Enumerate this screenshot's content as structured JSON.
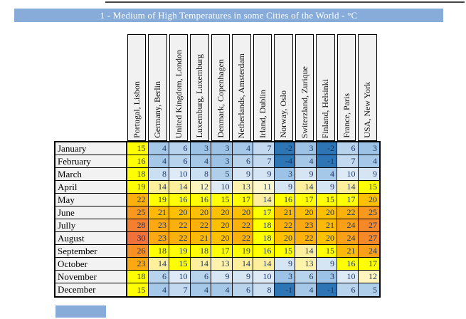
{
  "page": {
    "top_rule_color": "#454545",
    "title_bar": {
      "text": "1 - Medium of High Temperatures in some Cities of the World - °C",
      "bg": "#87ACD9",
      "text_color": "#FFFFFF"
    },
    "footer_fragment": {
      "bg": "#87ACD9"
    }
  },
  "table_style": {
    "header_cell_bg": "#F1F1F1",
    "row_label_bg": "#F2F2F2",
    "grid_border_color": "#000000",
    "number_color": "#1F3864",
    "negative_number_color": "#17375E"
  },
  "chart_data": {
    "type": "table",
    "title": "1 - Medium of High Temperatures in some Cities of the World - °C",
    "unit": "°C",
    "columns": [
      "Portugal, Lisbon",
      "Germany, Berlin",
      "United Kingdom, London",
      "Luxemburg, Luxemburg",
      "Denmark, Copenhagen",
      "Netherlands, Amsterdam",
      "Irland, Dublin",
      "Norway, Oslo",
      "Switerzland, Zurique",
      "Finland, Helsinki",
      "France, Paris",
      "USA, New York"
    ],
    "row_labels": [
      "January",
      "February",
      "March",
      "April",
      "May",
      "June",
      "Jully",
      "August",
      "September",
      "October",
      "November",
      "December"
    ],
    "values": [
      [
        15,
        4,
        6,
        3,
        3,
        4,
        7,
        -2,
        3,
        -2,
        6,
        3
      ],
      [
        16,
        4,
        6,
        4,
        3,
        6,
        7,
        -4,
        4,
        -1,
        7,
        4
      ],
      [
        18,
        8,
        10,
        8,
        5,
        9,
        9,
        3,
        9,
        4,
        10,
        9
      ],
      [
        19,
        14,
        14,
        12,
        10,
        13,
        11,
        9,
        14,
        9,
        14,
        15
      ],
      [
        22,
        19,
        16,
        16,
        15,
        17,
        14,
        16,
        17,
        15,
        17,
        20
      ],
      [
        25,
        21,
        20,
        20,
        20,
        20,
        17,
        21,
        20,
        20,
        22,
        25
      ],
      [
        28,
        23,
        22,
        22,
        20,
        22,
        18,
        22,
        23,
        21,
        24,
        27
      ],
      [
        30,
        23,
        22,
        21,
        20,
        22,
        18,
        20,
        22,
        20,
        24,
        27
      ],
      [
        26,
        18,
        19,
        18,
        17,
        19,
        16,
        15,
        14,
        15,
        21,
        24
      ],
      [
        23,
        14,
        15,
        14,
        13,
        14,
        14,
        9,
        13,
        9,
        16,
        17
      ],
      [
        18,
        6,
        10,
        6,
        9,
        9,
        10,
        3,
        6,
        3,
        10,
        12
      ],
      [
        15,
        4,
        7,
        4,
        4,
        6,
        8,
        -1,
        4,
        -1,
        6,
        5
      ]
    ],
    "color_scale": {
      "negative": "#2E75B6",
      "blue_domain": [
        3,
        10
      ],
      "blue_range": [
        "#9CC2E5",
        "#DEEBF7"
      ],
      "cream_domain": [
        11,
        14
      ],
      "cream_range": [
        "#FFF8CF",
        "#FEEF9C"
      ],
      "yellow_domain": [
        15,
        19
      ],
      "yellow": "#FFFF00",
      "orange_domain": [
        20,
        30
      ],
      "orange_range": [
        "#FFC000",
        "#F1703B"
      ]
    },
    "legend_position": "none",
    "grid": true
  }
}
